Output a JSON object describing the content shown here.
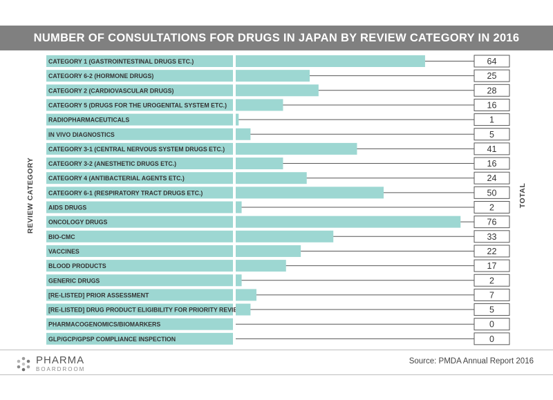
{
  "chart_data": {
    "type": "bar",
    "orientation": "horizontal",
    "title": "NUMBER OF CONSULTATIONS FOR DRUGS IN JAPAN BY REVIEW CATEGORY IN 2016",
    "ylabel": "REVIEW CATEGORY",
    "value_label": "TOTAL",
    "categories": [
      "CATEGORY 1 (GASTROINTESTINAL DRUGS ETC.)",
      "CATEGORY 6-2 (HORMONE DRUGS)",
      "CATEGORY 2 (CARDIOVASCULAR DRUGS)",
      "CATEGORY 5 (DRUGS FOR THE UROGENITAL SYSTEM ETC.)",
      "RADIOPHARMACEUTICALS",
      "IN VIVO DIAGNOSTICS",
      "CATEGORY 3-1 (CENTRAL NERVOUS SYSTEM DRUGS ETC.)",
      "CATEGORY 3-2 (ANESTHETIC DRUGS ETC.)",
      "CATEGORY 4  (ANTIBACTERIAL AGENTS ETC.)",
      "CATEGORY 6-1 (RESPIRATORY TRACT DRUGS ETC.)",
      "AIDS DRUGS",
      "ONCOLOGY DRUGS",
      "BIO-CMC",
      "VACCINES",
      "BLOOD PRODUCTS",
      "GENERIC DRUGS",
      "[RE-LISTED] PRIOR ASSESSMENT",
      "[RE-LISTED] DRUG PRODUCT ELIGIBILITY FOR PRIORITY REVIEW",
      "PHARMACOGENOMICS/BIOMARKERS",
      "GLP/GCP/GPSP COMPLIANCE INSPECTION"
    ],
    "values": [
      64,
      25,
      28,
      16,
      1,
      5,
      41,
      16,
      24,
      50,
      2,
      76,
      33,
      22,
      17,
      2,
      7,
      5,
      0,
      0
    ],
    "xlim": [
      0,
      80
    ],
    "grid": false,
    "legend": "none",
    "bar_color": "#9dd7d2"
  },
  "source": "Source: PMDA Annual Report 2016",
  "logo": {
    "line1": "PHARMA",
    "line2": "BOARDROOM"
  }
}
